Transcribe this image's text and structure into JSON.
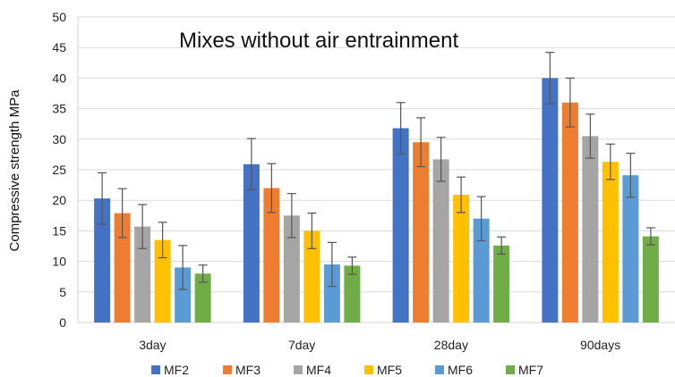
{
  "chart_data": {
    "type": "bar",
    "title": "Mixes without air entrainment",
    "ylabel": "Compressive strength MPa",
    "xlabel": "",
    "ylim": [
      0,
      50
    ],
    "yticks": [
      0,
      5,
      10,
      15,
      20,
      25,
      30,
      35,
      40,
      45,
      50
    ],
    "categories": [
      "3day",
      "7day",
      "28day",
      "90days"
    ],
    "grid": true,
    "legend_position": "bottom",
    "series": [
      {
        "name": "MF2",
        "color": "#4472C4",
        "values": [
          20.3,
          25.9,
          31.8,
          40.0
        ],
        "errors": [
          4.2,
          4.2,
          4.2,
          4.2
        ]
      },
      {
        "name": "MF3",
        "color": "#ED7D31",
        "values": [
          17.9,
          22.0,
          29.5,
          36.0
        ],
        "errors": [
          4.0,
          4.0,
          4.0,
          4.0
        ]
      },
      {
        "name": "MF4",
        "color": "#A5A5A5",
        "values": [
          15.7,
          17.5,
          26.7,
          30.5
        ],
        "errors": [
          3.6,
          3.6,
          3.6,
          3.6
        ]
      },
      {
        "name": "MF5",
        "color": "#FFC000",
        "values": [
          13.5,
          15.0,
          20.9,
          26.3
        ],
        "errors": [
          2.9,
          2.9,
          2.9,
          2.9
        ]
      },
      {
        "name": "MF6",
        "color": "#5B9BD5",
        "values": [
          9.0,
          9.5,
          17.0,
          24.1
        ],
        "errors": [
          3.6,
          3.6,
          3.6,
          3.6
        ]
      },
      {
        "name": "MF7",
        "color": "#70AD47",
        "values": [
          8.0,
          9.3,
          12.6,
          14.1
        ],
        "errors": [
          1.4,
          1.4,
          1.4,
          1.4
        ]
      }
    ]
  }
}
